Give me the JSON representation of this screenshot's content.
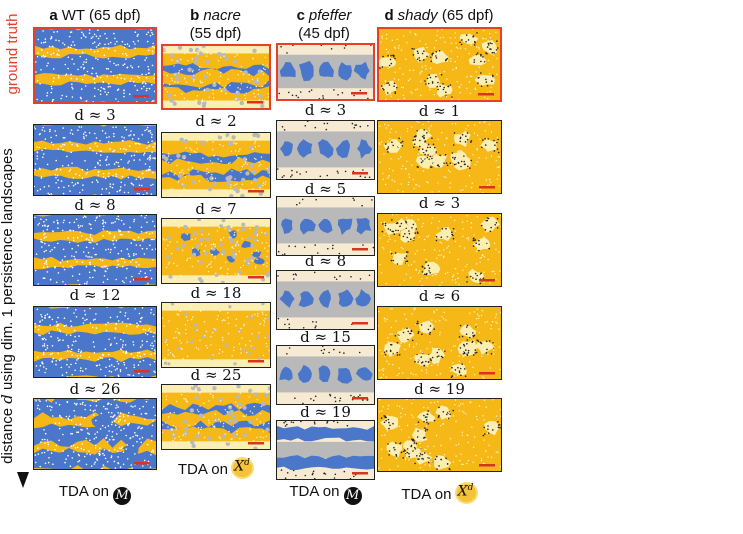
{
  "side_labels": {
    "ground_truth": "ground truth",
    "distance_prefix": "distance",
    "distance_var": "d",
    "distance_suffix": "using dim. 1 persistence landscapes"
  },
  "columns": [
    {
      "letter": "a",
      "name": "WT",
      "name_italic": false,
      "age": "(65 dpf)",
      "rows": [
        "d ≈ 3",
        "d ≈ 8",
        "d ≈ 12",
        "d ≈ 26"
      ],
      "footer_prefix": "TDA on",
      "footer_symbol": "M"
    },
    {
      "letter": "b",
      "name": "nacre",
      "name_italic": true,
      "age": "(55 dpf)",
      "rows": [
        "d ≈ 2",
        "d ≈ 7",
        "d ≈ 18",
        "d ≈ 25"
      ],
      "footer_prefix": "TDA on",
      "footer_symbol": "X",
      "footer_sup": "d"
    },
    {
      "letter": "c",
      "name": "pfeffer",
      "name_italic": true,
      "age": "(45 dpf)",
      "rows": [
        "d ≈ 3",
        "d ≈ 5",
        "d ≈ 8",
        "d ≈ 15",
        "d ≈ 19"
      ],
      "footer_prefix": "TDA on",
      "footer_symbol": "M"
    },
    {
      "letter": "d",
      "name": "shady",
      "name_italic": true,
      "age": "(65 dpf)",
      "rows": [
        "d ≈ 1",
        "d ≈ 3",
        "d ≈ 6",
        "d ≈ 19"
      ],
      "footer_prefix": "TDA on",
      "footer_symbol": "X",
      "footer_sup": "d"
    }
  ],
  "colors": {
    "ground_truth_border": "#e5402b",
    "stripe_blue": "#4a77c9",
    "interstripe_yellow": "#f6b817",
    "pale_yellow": "#fbeeb3",
    "grey": "#b9b9b9",
    "cream": "#f7ead3",
    "scale_bar": "#d6361f"
  }
}
